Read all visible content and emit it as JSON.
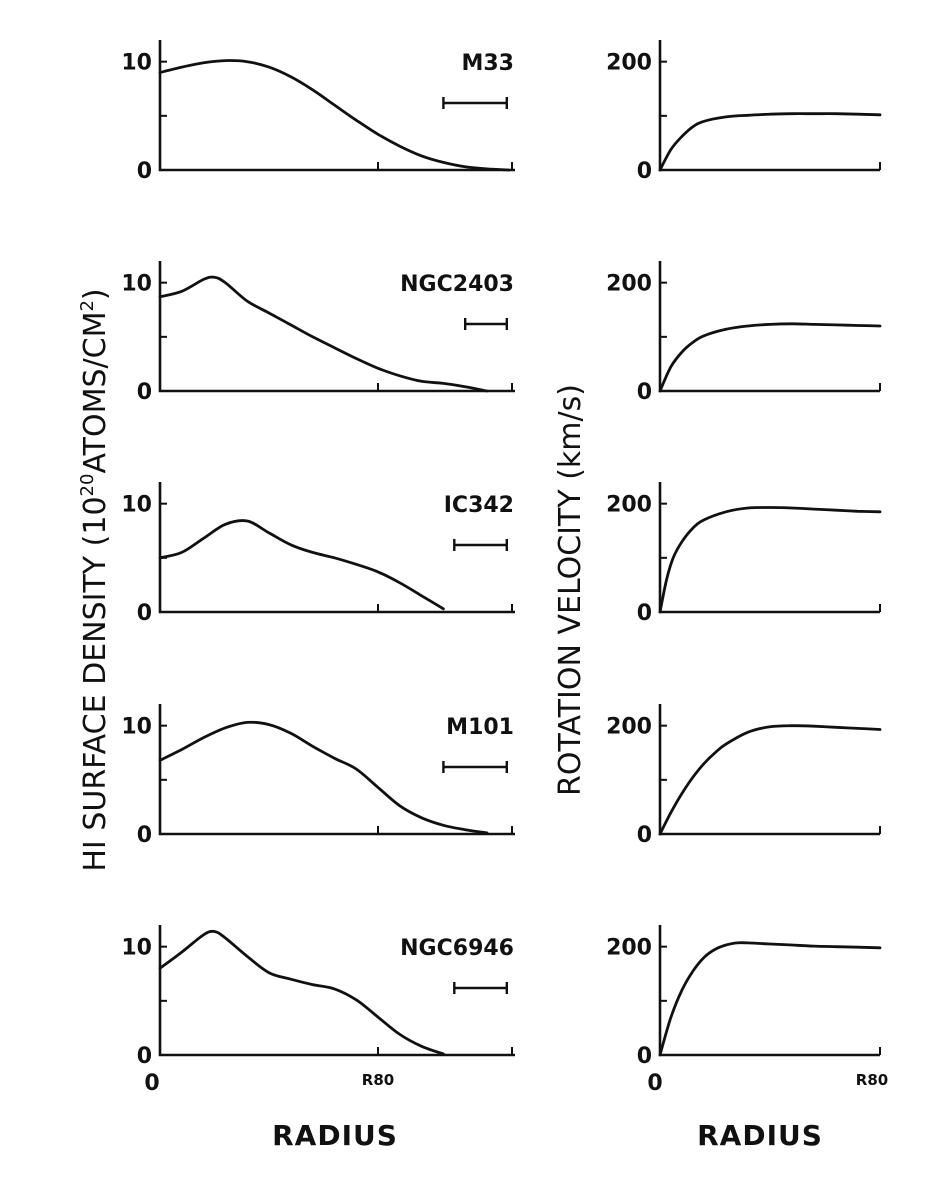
{
  "figure": {
    "left_ylabel_main": "HI SURFACE DENSITY (10",
    "left_ylabel_sup": "20",
    "left_ylabel_mid": "ATOMS/CM",
    "left_ylabel_sup2": "2",
    "left_ylabel_end": ")",
    "right_ylabel": "ROTATION VELOCITY (km/s)",
    "xlabel_left": "RADIUS",
    "xlabel_right": "RADIUS",
    "x_origin_label": "0",
    "x_r80_label": "R80"
  },
  "chart_data": [
    {
      "type": "line",
      "panel": "density",
      "galaxy": "M33",
      "ylim": [
        0,
        12
      ],
      "yticks": [
        0,
        10
      ],
      "xlim": [
        0,
        1.6
      ],
      "xticks_labeled": {
        "0": "0",
        "1": "R80"
      },
      "x": [
        0,
        0.1,
        0.2,
        0.3,
        0.4,
        0.5,
        0.6,
        0.7,
        0.8,
        0.9,
        1.0,
        1.1,
        1.2,
        1.3,
        1.4,
        1.5,
        1.6
      ],
      "y": [
        9.0,
        9.5,
        9.9,
        10.1,
        10.0,
        9.5,
        8.6,
        7.4,
        6.0,
        4.6,
        3.3,
        2.2,
        1.3,
        0.7,
        0.3,
        0.1,
        0.0
      ],
      "resolution_bar": [
        1.3,
        1.6
      ]
    },
    {
      "type": "line",
      "panel": "rotation",
      "galaxy": "M33",
      "ylim": [
        0,
        240
      ],
      "yticks": [
        0,
        200
      ],
      "xlim": [
        0,
        1.0
      ],
      "x": [
        0,
        0.05,
        0.1,
        0.15,
        0.2,
        0.3,
        0.4,
        0.5,
        0.6,
        0.7,
        0.8,
        0.9,
        1.0
      ],
      "y": [
        0,
        38,
        62,
        80,
        90,
        98,
        101,
        103,
        104,
        104,
        104,
        103,
        102
      ]
    },
    {
      "type": "line",
      "panel": "density",
      "galaxy": "NGC2403",
      "ylim": [
        0,
        12
      ],
      "yticks": [
        0,
        10
      ],
      "xlim": [
        0,
        1.6
      ],
      "x": [
        0,
        0.1,
        0.2,
        0.25,
        0.3,
        0.4,
        0.5,
        0.6,
        0.7,
        0.8,
        0.9,
        1.0,
        1.1,
        1.2,
        1.3,
        1.4,
        1.5
      ],
      "y": [
        8.7,
        9.2,
        10.3,
        10.5,
        10.0,
        8.3,
        7.2,
        6.1,
        5.0,
        4.0,
        3.0,
        2.1,
        1.4,
        0.9,
        0.7,
        0.4,
        0.0
      ],
      "resolution_bar": [
        1.4,
        1.6
      ]
    },
    {
      "type": "line",
      "panel": "rotation",
      "galaxy": "NGC2403",
      "ylim": [
        0,
        240
      ],
      "yticks": [
        0,
        200
      ],
      "xlim": [
        0,
        1.0
      ],
      "x": [
        0,
        0.05,
        0.1,
        0.15,
        0.2,
        0.3,
        0.4,
        0.5,
        0.6,
        0.7,
        0.8,
        0.9,
        1.0
      ],
      "y": [
        0,
        45,
        72,
        90,
        102,
        114,
        120,
        123,
        124,
        123,
        122,
        121,
        120
      ]
    },
    {
      "type": "line",
      "panel": "density",
      "galaxy": "IC342",
      "ylim": [
        0,
        12
      ],
      "yticks": [
        0,
        10
      ],
      "xlim": [
        0,
        1.6
      ],
      "x": [
        0,
        0.1,
        0.2,
        0.3,
        0.4,
        0.5,
        0.6,
        0.7,
        0.8,
        0.9,
        1.0,
        1.1,
        1.2,
        1.3
      ],
      "y": [
        5.0,
        5.5,
        6.8,
        8.1,
        8.4,
        7.3,
        6.2,
        5.5,
        5.0,
        4.4,
        3.7,
        2.7,
        1.5,
        0.3
      ],
      "resolution_bar": [
        1.35,
        1.6
      ]
    },
    {
      "type": "line",
      "panel": "rotation",
      "galaxy": "IC342",
      "ylim": [
        0,
        240
      ],
      "yticks": [
        0,
        200
      ],
      "xlim": [
        0,
        1.0
      ],
      "x": [
        0,
        0.03,
        0.06,
        0.1,
        0.15,
        0.2,
        0.3,
        0.4,
        0.5,
        0.6,
        0.7,
        0.8,
        0.9,
        1.0
      ],
      "y": [
        0,
        60,
        100,
        130,
        155,
        170,
        185,
        192,
        193,
        192,
        190,
        188,
        186,
        185
      ]
    },
    {
      "type": "line",
      "panel": "density",
      "galaxy": "M101",
      "ylim": [
        0,
        12
      ],
      "yticks": [
        0,
        10
      ],
      "xlim": [
        0,
        1.6
      ],
      "x": [
        0,
        0.1,
        0.2,
        0.3,
        0.4,
        0.5,
        0.6,
        0.7,
        0.8,
        0.9,
        1.0,
        1.1,
        1.2,
        1.3,
        1.4,
        1.5
      ],
      "y": [
        6.8,
        7.8,
        8.9,
        9.8,
        10.3,
        10.1,
        9.3,
        8.1,
        7.0,
        6.0,
        4.3,
        2.6,
        1.5,
        0.8,
        0.4,
        0.1
      ],
      "resolution_bar": [
        1.3,
        1.6
      ]
    },
    {
      "type": "line",
      "panel": "rotation",
      "galaxy": "M101",
      "ylim": [
        0,
        240
      ],
      "yticks": [
        0,
        200
      ],
      "xlim": [
        0,
        1.0
      ],
      "x": [
        0,
        0.05,
        0.1,
        0.15,
        0.2,
        0.25,
        0.3,
        0.4,
        0.5,
        0.6,
        0.7,
        0.8,
        0.9,
        1.0
      ],
      "y": [
        0,
        40,
        75,
        105,
        130,
        150,
        166,
        188,
        198,
        200,
        199,
        197,
        195,
        193
      ]
    },
    {
      "type": "line",
      "panel": "density",
      "galaxy": "NGC6946",
      "ylim": [
        0,
        12
      ],
      "yticks": [
        0,
        10
      ],
      "xlim": [
        0,
        1.6
      ],
      "x": [
        0,
        0.1,
        0.2,
        0.25,
        0.3,
        0.4,
        0.5,
        0.6,
        0.7,
        0.8,
        0.9,
        1.0,
        1.1,
        1.2,
        1.3
      ],
      "y": [
        8.0,
        9.5,
        11.1,
        11.4,
        10.8,
        9.1,
        7.6,
        7.0,
        6.5,
        6.1,
        5.1,
        3.5,
        1.9,
        0.8,
        0.1
      ],
      "resolution_bar": [
        1.35,
        1.6
      ]
    },
    {
      "type": "line",
      "panel": "rotation",
      "galaxy": "NGC6946",
      "ylim": [
        0,
        240
      ],
      "yticks": [
        0,
        200
      ],
      "xlim": [
        0,
        1.0
      ],
      "x": [
        0,
        0.05,
        0.1,
        0.15,
        0.2,
        0.25,
        0.3,
        0.35,
        0.4,
        0.5,
        0.6,
        0.7,
        0.8,
        0.9,
        1.0
      ],
      "y": [
        0,
        70,
        120,
        155,
        180,
        195,
        203,
        207,
        207,
        205,
        203,
        201,
        200,
        199,
        198
      ]
    }
  ]
}
